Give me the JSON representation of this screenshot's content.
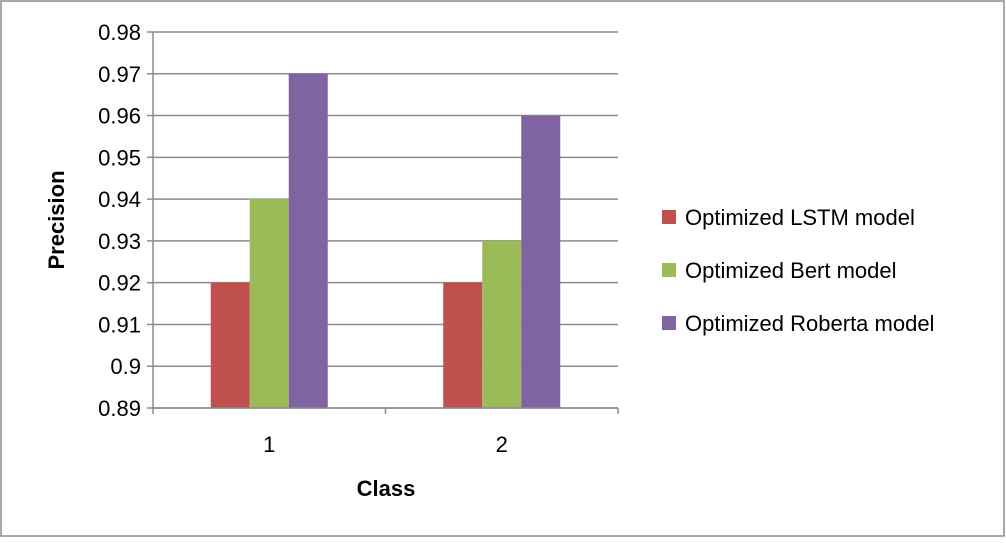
{
  "chart_data": {
    "type": "bar",
    "title": "",
    "xlabel": "Class",
    "ylabel": "Precision",
    "categories": [
      "1",
      "2"
    ],
    "series": [
      {
        "name": "Optimized LSTM model",
        "color": "#c0504d",
        "values": [
          0.92,
          0.92
        ]
      },
      {
        "name": "Optimized Bert model",
        "color": "#9bbb59",
        "values": [
          0.94,
          0.93
        ]
      },
      {
        "name": "Optimized Roberta model",
        "color": "#8064a2",
        "values": [
          0.97,
          0.96
        ]
      }
    ],
    "ylim": [
      0.89,
      0.98
    ],
    "yticks": [
      "0.89",
      "0.9",
      "0.91",
      "0.92",
      "0.93",
      "0.94",
      "0.95",
      "0.96",
      "0.97",
      "0.98"
    ],
    "grid": true,
    "legend_position": "right"
  }
}
